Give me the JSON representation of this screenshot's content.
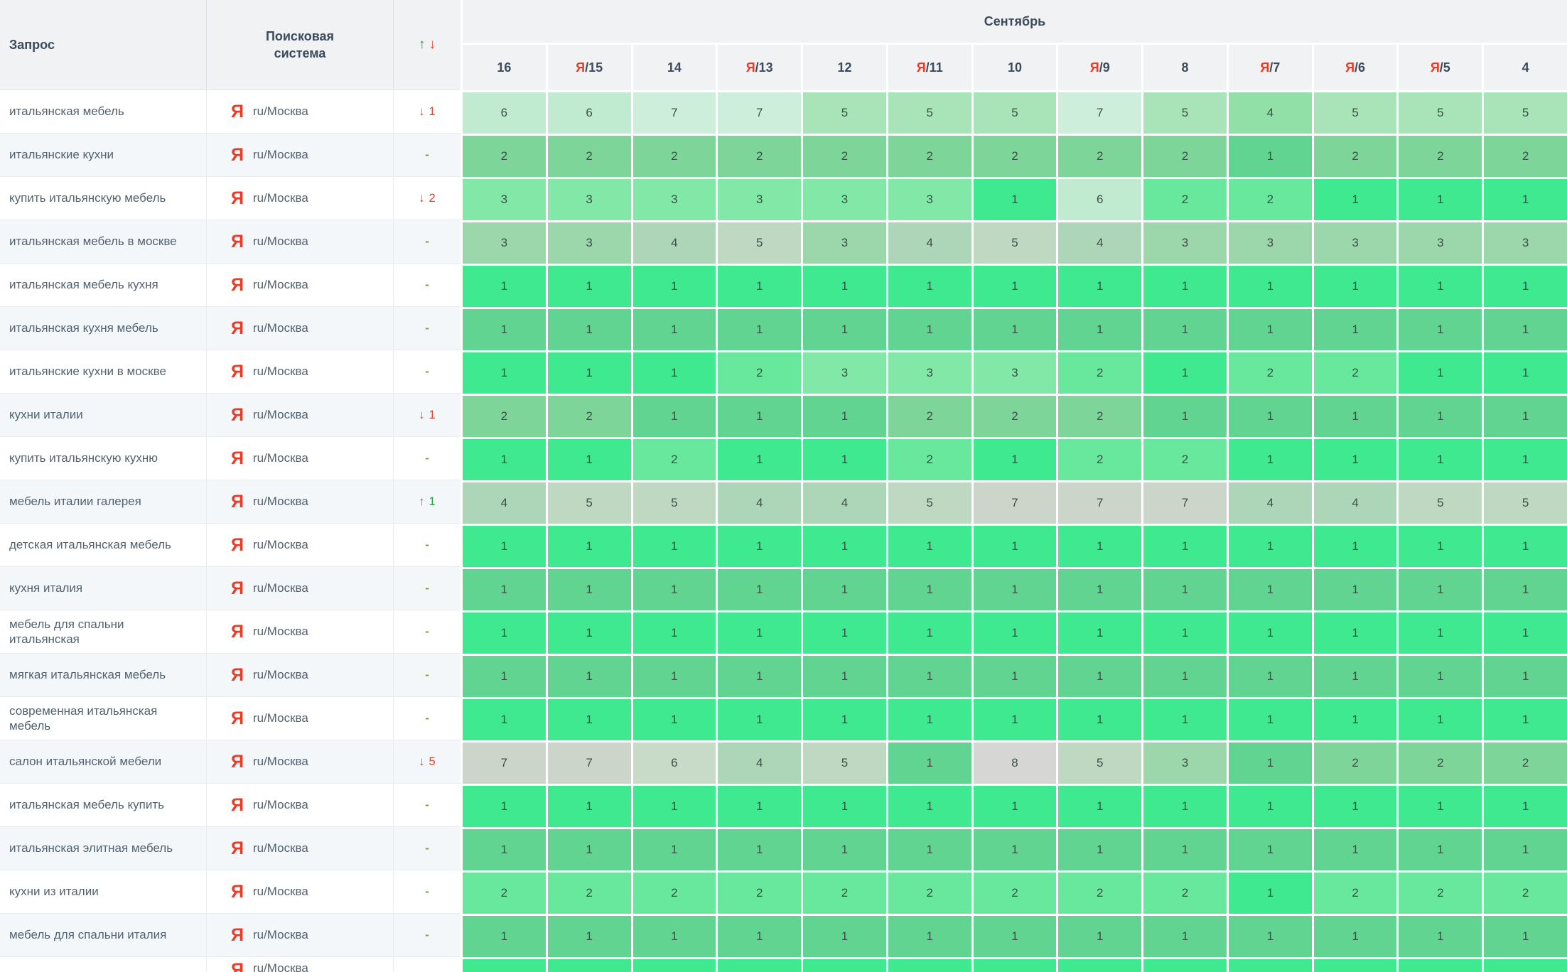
{
  "table": {
    "header": {
      "query_label": "Запрос",
      "engine_label": "Поисковая система",
      "sort_up_symbol": "↑",
      "sort_down_symbol": "↓",
      "month_label": "Сентябрь",
      "yandex_marker": "Я",
      "date_columns": [
        {
          "yandex_update": false,
          "day": "16"
        },
        {
          "yandex_update": true,
          "day": "15"
        },
        {
          "yandex_update": false,
          "day": "14"
        },
        {
          "yandex_update": true,
          "day": "13"
        },
        {
          "yandex_update": false,
          "day": "12"
        },
        {
          "yandex_update": true,
          "day": "11"
        },
        {
          "yandex_update": false,
          "day": "10"
        },
        {
          "yandex_update": true,
          "day": "9"
        },
        {
          "yandex_update": false,
          "day": "8"
        },
        {
          "yandex_update": true,
          "day": "7"
        },
        {
          "yandex_update": true,
          "day": "6"
        },
        {
          "yandex_update": true,
          "day": "5"
        },
        {
          "yandex_update": false,
          "day": "4"
        }
      ]
    },
    "engine": {
      "icon": "Я",
      "name": "ru/Москва"
    },
    "change_none_symbol": "-",
    "rows": [
      {
        "query": "итальянская мебель",
        "change": {
          "dir": "down",
          "value": "1"
        },
        "positions": [
          6,
          6,
          7,
          7,
          5,
          5,
          5,
          7,
          5,
          4,
          5,
          5,
          5
        ]
      },
      {
        "query": "итальянские кухни",
        "change": {
          "dir": "none",
          "value": ""
        },
        "positions": [
          2,
          2,
          2,
          2,
          2,
          2,
          2,
          2,
          2,
          1,
          2,
          2,
          2
        ]
      },
      {
        "query": "купить итальянскую мебель",
        "change": {
          "dir": "down",
          "value": "2"
        },
        "positions": [
          3,
          3,
          3,
          3,
          3,
          3,
          1,
          6,
          2,
          2,
          1,
          1,
          1
        ]
      },
      {
        "query": "итальянская мебель в москве",
        "change": {
          "dir": "none",
          "value": ""
        },
        "positions": [
          3,
          3,
          4,
          5,
          3,
          4,
          5,
          4,
          3,
          3,
          3,
          3,
          3
        ]
      },
      {
        "query": "итальянская мебель кухня",
        "change": {
          "dir": "none",
          "value": ""
        },
        "positions": [
          1,
          1,
          1,
          1,
          1,
          1,
          1,
          1,
          1,
          1,
          1,
          1,
          1
        ]
      },
      {
        "query": "итальянская кухня мебель",
        "change": {
          "dir": "none",
          "value": ""
        },
        "positions": [
          1,
          1,
          1,
          1,
          1,
          1,
          1,
          1,
          1,
          1,
          1,
          1,
          1
        ]
      },
      {
        "query": "итальянские кухни в москве",
        "change": {
          "dir": "none",
          "value": ""
        },
        "positions": [
          1,
          1,
          1,
          2,
          3,
          3,
          3,
          2,
          1,
          2,
          2,
          1,
          1
        ]
      },
      {
        "query": "кухни италии",
        "change": {
          "dir": "down",
          "value": "1"
        },
        "positions": [
          2,
          2,
          1,
          1,
          1,
          2,
          2,
          2,
          1,
          1,
          1,
          1,
          1
        ]
      },
      {
        "query": "купить итальянскую кухню",
        "change": {
          "dir": "none",
          "value": ""
        },
        "positions": [
          1,
          1,
          2,
          1,
          1,
          2,
          1,
          2,
          2,
          1,
          1,
          1,
          1
        ]
      },
      {
        "query": "мебель италии галерея",
        "change": {
          "dir": "up",
          "value": "1"
        },
        "positions": [
          4,
          5,
          5,
          4,
          4,
          5,
          7,
          7,
          7,
          4,
          4,
          5,
          5
        ]
      },
      {
        "query": "детская итальянская мебель",
        "change": {
          "dir": "none",
          "value": ""
        },
        "positions": [
          1,
          1,
          1,
          1,
          1,
          1,
          1,
          1,
          1,
          1,
          1,
          1,
          1
        ]
      },
      {
        "query": "кухня италия",
        "change": {
          "dir": "none",
          "value": ""
        },
        "positions": [
          1,
          1,
          1,
          1,
          1,
          1,
          1,
          1,
          1,
          1,
          1,
          1,
          1
        ]
      },
      {
        "query": "мебель для спальни итальянская",
        "change": {
          "dir": "none",
          "value": ""
        },
        "positions": [
          1,
          1,
          1,
          1,
          1,
          1,
          1,
          1,
          1,
          1,
          1,
          1,
          1
        ]
      },
      {
        "query": "мягкая итальянская мебель",
        "change": {
          "dir": "none",
          "value": ""
        },
        "positions": [
          1,
          1,
          1,
          1,
          1,
          1,
          1,
          1,
          1,
          1,
          1,
          1,
          1
        ]
      },
      {
        "query": "современная итальянская мебель",
        "change": {
          "dir": "none",
          "value": ""
        },
        "positions": [
          1,
          1,
          1,
          1,
          1,
          1,
          1,
          1,
          1,
          1,
          1,
          1,
          1
        ]
      },
      {
        "query": "салон итальянской мебели",
        "change": {
          "dir": "down",
          "value": "5"
        },
        "positions": [
          7,
          7,
          6,
          4,
          5,
          1,
          8,
          5,
          3,
          1,
          2,
          2,
          2
        ]
      },
      {
        "query": "итальянская мебель купить",
        "change": {
          "dir": "none",
          "value": ""
        },
        "positions": [
          1,
          1,
          1,
          1,
          1,
          1,
          1,
          1,
          1,
          1,
          1,
          1,
          1
        ]
      },
      {
        "query": "итальянская элитная мебель",
        "change": {
          "dir": "none",
          "value": ""
        },
        "positions": [
          1,
          1,
          1,
          1,
          1,
          1,
          1,
          1,
          1,
          1,
          1,
          1,
          1
        ]
      },
      {
        "query": "кухни из италии",
        "change": {
          "dir": "none",
          "value": ""
        },
        "positions": [
          2,
          2,
          2,
          2,
          2,
          2,
          2,
          2,
          2,
          1,
          2,
          2,
          2
        ]
      },
      {
        "query": "мебель для спальни италия",
        "change": {
          "dir": "none",
          "value": ""
        },
        "positions": [
          1,
          1,
          1,
          1,
          1,
          1,
          1,
          1,
          1,
          1,
          1,
          1,
          1
        ]
      }
    ],
    "partial_bottom_row": {
      "visible": true,
      "position_color_level": 1
    }
  },
  "colors": {
    "yandex_red": "#ee3a24",
    "header_bg": "#f1f2f3",
    "header_text": "#3c4b5c",
    "row_alt_bg": "#f3f7fa",
    "query_text": "#53626f",
    "cell_text": "#3d4f46",
    "change_up": "#18a53a",
    "change_down": "#e8402c",
    "change_none": "#6fa52c",
    "position_palette_white_rows": {
      "1": "#3fe98f",
      "2": "#68e89c",
      "3": "#82e8a7",
      "4": "#90e0a8",
      "5": "#a9e4b8",
      "6": "#c1ebd0",
      "7": "#cdeeda",
      "8": "#dadfda"
    },
    "position_palette_striped_rows": {
      "1": "#62d492",
      "2": "#7dd59a",
      "3": "#9cd7ab",
      "4": "#add5b7",
      "5": "#bfd8c2",
      "6": "#c8dbc9",
      "7": "#cbd5ca",
      "8": "#d6d7d5"
    }
  }
}
